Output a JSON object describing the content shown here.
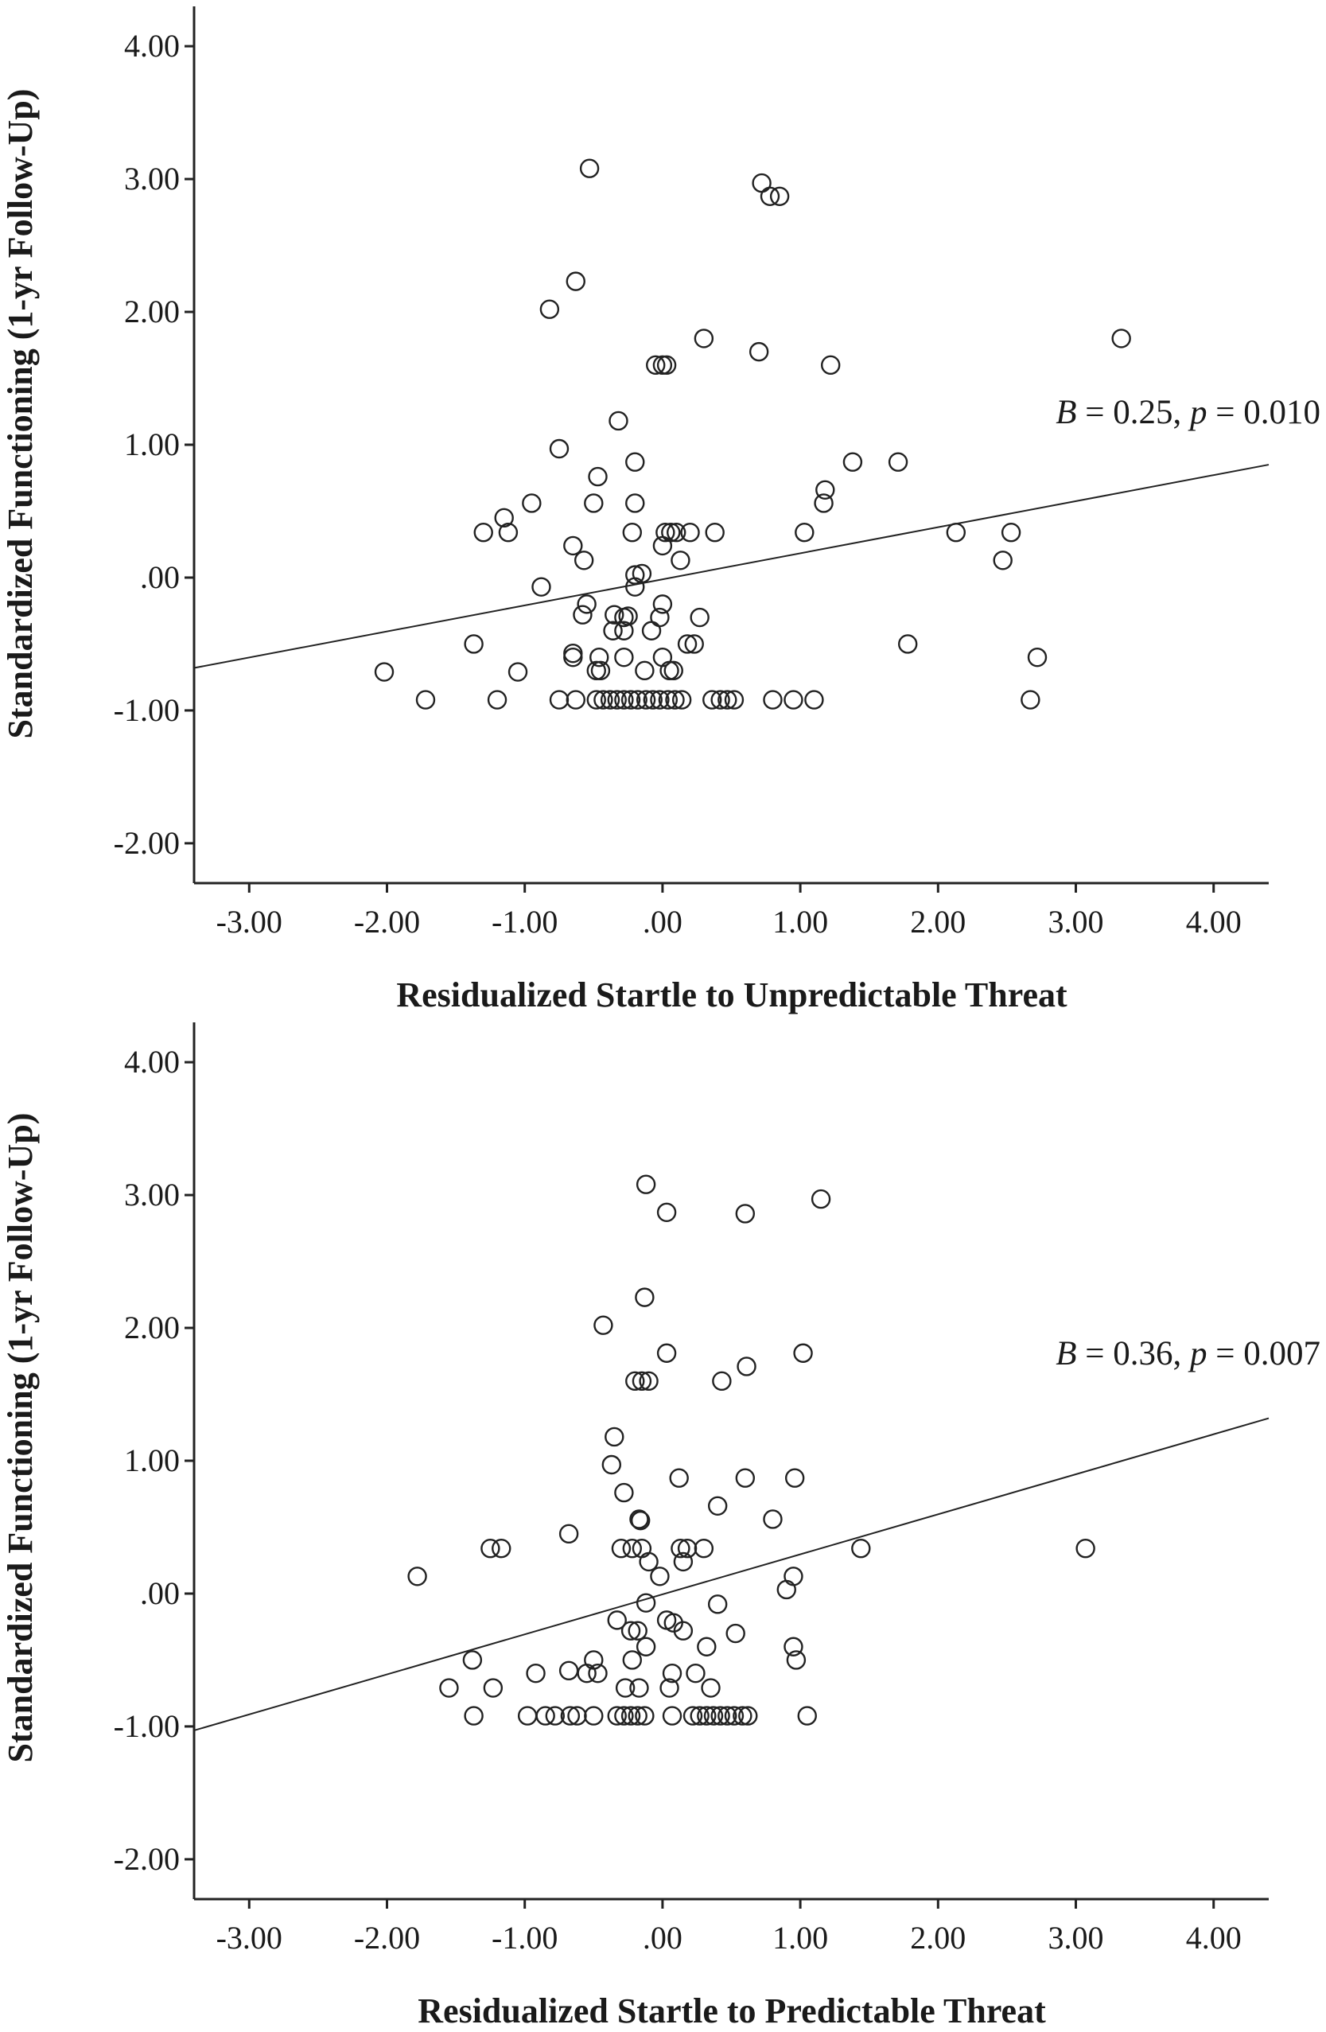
{
  "chart_data": [
    {
      "type": "scatter",
      "xlabel": "Residualized Startle to Unpredictable Threat",
      "ylabel": "Standardized Functioning (1-yr Follow-Up)",
      "xlim": [
        -3.4,
        4.4
      ],
      "ylim": [
        -2.3,
        4.3
      ],
      "x_ticks": [
        "-3.00",
        "-2.00",
        "-1.00",
        ".00",
        "1.00",
        "2.00",
        "3.00",
        "4.00"
      ],
      "x_tick_values": [
        -3,
        -2,
        -1,
        0,
        1,
        2,
        3,
        4
      ],
      "y_ticks": [
        "4.00",
        "3.00",
        "2.00",
        "1.00",
        ".00",
        "-1.00",
        "-2.00"
      ],
      "y_tick_values": [
        4,
        3,
        2,
        1,
        0,
        -1,
        -2
      ],
      "annotation": {
        "B": "B",
        "b_text": " = 0.25, ",
        "p": "p",
        "p_text": " = 0.010"
      },
      "fit_line": {
        "x": [
          -3.4,
          4.4
        ],
        "y": [
          -0.68,
          0.85
        ]
      },
      "points": [
        [
          -0.53,
          3.08
        ],
        [
          0.72,
          2.97
        ],
        [
          0.78,
          2.87
        ],
        [
          0.85,
          2.87
        ],
        [
          -0.63,
          2.23
        ],
        [
          -0.82,
          2.02
        ],
        [
          0.3,
          1.8
        ],
        [
          3.33,
          1.8
        ],
        [
          0.7,
          1.7
        ],
        [
          1.22,
          1.6
        ],
        [
          -0.05,
          1.6
        ],
        [
          0.0,
          1.6
        ],
        [
          0.03,
          1.6
        ],
        [
          -0.32,
          1.18
        ],
        [
          -0.75,
          0.97
        ],
        [
          -0.2,
          0.87
        ],
        [
          1.38,
          0.87
        ],
        [
          1.71,
          0.87
        ],
        [
          -0.47,
          0.76
        ],
        [
          1.18,
          0.66
        ],
        [
          1.17,
          0.56
        ],
        [
          -0.2,
          0.56
        ],
        [
          -0.5,
          0.56
        ],
        [
          -0.95,
          0.56
        ],
        [
          -1.15,
          0.45
        ],
        [
          -1.3,
          0.34
        ],
        [
          -1.12,
          0.34
        ],
        [
          -0.22,
          0.34
        ],
        [
          0.02,
          0.34
        ],
        [
          0.06,
          0.34
        ],
        [
          0.1,
          0.34
        ],
        [
          0.2,
          0.34
        ],
        [
          0.38,
          0.34
        ],
        [
          1.03,
          0.34
        ],
        [
          2.13,
          0.34
        ],
        [
          2.53,
          0.34
        ],
        [
          -0.65,
          0.24
        ],
        [
          0.0,
          0.24
        ],
        [
          -0.57,
          0.13
        ],
        [
          0.13,
          0.13
        ],
        [
          2.47,
          0.13
        ],
        [
          -0.15,
          0.03
        ],
        [
          -0.2,
          0.02
        ],
        [
          -0.2,
          -0.07
        ],
        [
          -0.88,
          -0.07
        ],
        [
          -0.55,
          -0.2
        ],
        [
          -0.58,
          -0.28
        ],
        [
          -0.35,
          -0.28
        ],
        [
          -0.25,
          -0.29
        ],
        [
          -0.28,
          -0.3
        ],
        [
          0.0,
          -0.2
        ],
        [
          -0.02,
          -0.3
        ],
        [
          0.27,
          -0.3
        ],
        [
          -0.36,
          -0.4
        ],
        [
          -0.28,
          -0.4
        ],
        [
          -0.08,
          -0.4
        ],
        [
          1.78,
          -0.5
        ],
        [
          -1.37,
          -0.5
        ],
        [
          0.18,
          -0.5
        ],
        [
          0.23,
          -0.5
        ],
        [
          -0.65,
          -0.57
        ],
        [
          -0.65,
          -0.6
        ],
        [
          -0.46,
          -0.6
        ],
        [
          -0.28,
          -0.6
        ],
        [
          0.0,
          -0.6
        ],
        [
          2.72,
          -0.6
        ],
        [
          -0.48,
          -0.7
        ],
        [
          -0.45,
          -0.7
        ],
        [
          0.05,
          -0.7
        ],
        [
          0.08,
          -0.7
        ],
        [
          -0.13,
          -0.7
        ],
        [
          -2.02,
          -0.71
        ],
        [
          -1.05,
          -0.71
        ],
        [
          -1.72,
          -0.92
        ],
        [
          -1.2,
          -0.92
        ],
        [
          -0.75,
          -0.92
        ],
        [
          -0.63,
          -0.92
        ],
        [
          -0.48,
          -0.92
        ],
        [
          -0.43,
          -0.92
        ],
        [
          -0.38,
          -0.92
        ],
        [
          -0.33,
          -0.92
        ],
        [
          -0.28,
          -0.92
        ],
        [
          -0.23,
          -0.92
        ],
        [
          -0.18,
          -0.92
        ],
        [
          -0.12,
          -0.92
        ],
        [
          -0.07,
          -0.92
        ],
        [
          -0.02,
          -0.92
        ],
        [
          0.04,
          -0.92
        ],
        [
          0.09,
          -0.92
        ],
        [
          0.14,
          -0.92
        ],
        [
          0.36,
          -0.92
        ],
        [
          0.42,
          -0.92
        ],
        [
          0.47,
          -0.92
        ],
        [
          0.52,
          -0.92
        ],
        [
          0.8,
          -0.92
        ],
        [
          0.95,
          -0.92
        ],
        [
          1.1,
          -0.92
        ],
        [
          2.67,
          -0.92
        ]
      ]
    },
    {
      "type": "scatter",
      "xlabel": "Residualized Startle to Predictable Threat",
      "ylabel": "Standardized Functioning (1-yr Follow-Up)",
      "xlim": [
        -3.4,
        4.4
      ],
      "ylim": [
        -2.3,
        4.3
      ],
      "x_ticks": [
        "-3.00",
        "-2.00",
        "-1.00",
        ".00",
        "1.00",
        "2.00",
        "3.00",
        "4.00"
      ],
      "x_tick_values": [
        -3,
        -2,
        -1,
        0,
        1,
        2,
        3,
        4
      ],
      "y_ticks": [
        "4.00",
        "3.00",
        "2.00",
        "1.00",
        ".00",
        "-1.00",
        "-2.00"
      ],
      "y_tick_values": [
        4,
        3,
        2,
        1,
        0,
        -1,
        -2
      ],
      "annotation": {
        "B": "B",
        "b_text": " = 0.36, ",
        "p": "p",
        "p_text": " = 0.007"
      },
      "fit_line": {
        "x": [
          -3.4,
          4.4
        ],
        "y": [
          -1.03,
          1.32
        ]
      },
      "points": [
        [
          -0.12,
          3.08
        ],
        [
          1.15,
          2.97
        ],
        [
          0.03,
          2.87
        ],
        [
          0.6,
          2.86
        ],
        [
          -0.13,
          2.23
        ],
        [
          -0.43,
          2.02
        ],
        [
          0.03,
          1.81
        ],
        [
          1.02,
          1.81
        ],
        [
          0.61,
          1.71
        ],
        [
          -0.2,
          1.6
        ],
        [
          -0.15,
          1.6
        ],
        [
          -0.1,
          1.6
        ],
        [
          0.43,
          1.6
        ],
        [
          -0.35,
          1.18
        ],
        [
          -0.37,
          0.97
        ],
        [
          0.12,
          0.87
        ],
        [
          0.6,
          0.87
        ],
        [
          0.96,
          0.87
        ],
        [
          -0.28,
          0.76
        ],
        [
          0.4,
          0.66
        ],
        [
          -0.17,
          0.56
        ],
        [
          -0.16,
          0.55
        ],
        [
          0.8,
          0.56
        ],
        [
          -0.68,
          0.45
        ],
        [
          -1.25,
          0.34
        ],
        [
          -1.17,
          0.34
        ],
        [
          -0.3,
          0.34
        ],
        [
          -0.22,
          0.34
        ],
        [
          -0.15,
          0.34
        ],
        [
          0.13,
          0.34
        ],
        [
          0.18,
          0.34
        ],
        [
          0.3,
          0.34
        ],
        [
          1.44,
          0.34
        ],
        [
          3.07,
          0.34
        ],
        [
          -0.1,
          0.24
        ],
        [
          0.15,
          0.24
        ],
        [
          -0.02,
          0.13
        ],
        [
          0.95,
          0.13
        ],
        [
          -1.78,
          0.13
        ],
        [
          0.9,
          0.03
        ],
        [
          -0.12,
          -0.07
        ],
        [
          0.4,
          -0.08
        ],
        [
          -0.33,
          -0.2
        ],
        [
          0.03,
          -0.2
        ],
        [
          0.08,
          -0.22
        ],
        [
          -0.18,
          -0.28
        ],
        [
          0.15,
          -0.28
        ],
        [
          -0.23,
          -0.28
        ],
        [
          0.53,
          -0.3
        ],
        [
          -0.12,
          -0.4
        ],
        [
          0.32,
          -0.4
        ],
        [
          0.95,
          -0.4
        ],
        [
          -1.38,
          -0.5
        ],
        [
          -0.5,
          -0.5
        ],
        [
          -0.22,
          -0.5
        ],
        [
          0.97,
          -0.5
        ],
        [
          -0.92,
          -0.6
        ],
        [
          -0.68,
          -0.58
        ],
        [
          -0.55,
          -0.6
        ],
        [
          -0.47,
          -0.6
        ],
        [
          0.07,
          -0.6
        ],
        [
          0.24,
          -0.6
        ],
        [
          -1.55,
          -0.71
        ],
        [
          -1.23,
          -0.71
        ],
        [
          -0.27,
          -0.71
        ],
        [
          -0.17,
          -0.71
        ],
        [
          0.05,
          -0.71
        ],
        [
          0.35,
          -0.71
        ],
        [
          -1.37,
          -0.92
        ],
        [
          -0.98,
          -0.92
        ],
        [
          -0.85,
          -0.92
        ],
        [
          -0.78,
          -0.92
        ],
        [
          -0.67,
          -0.92
        ],
        [
          -0.62,
          -0.92
        ],
        [
          -0.5,
          -0.92
        ],
        [
          -0.33,
          -0.92
        ],
        [
          -0.28,
          -0.92
        ],
        [
          -0.23,
          -0.92
        ],
        [
          -0.18,
          -0.92
        ],
        [
          -0.13,
          -0.92
        ],
        [
          0.07,
          -0.92
        ],
        [
          0.22,
          -0.92
        ],
        [
          0.27,
          -0.92
        ],
        [
          0.32,
          -0.92
        ],
        [
          0.37,
          -0.92
        ],
        [
          0.42,
          -0.92
        ],
        [
          0.47,
          -0.92
        ],
        [
          0.52,
          -0.92
        ],
        [
          0.58,
          -0.92
        ],
        [
          0.62,
          -0.92
        ],
        [
          1.05,
          -0.92
        ]
      ]
    }
  ]
}
